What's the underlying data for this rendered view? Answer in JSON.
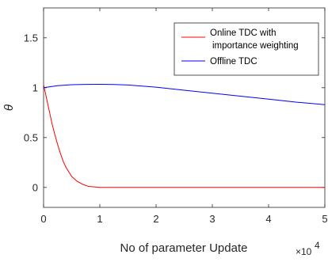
{
  "chart_data": {
    "type": "line",
    "title": "",
    "xlabel": "No of parameter Update",
    "ylabel": "θ",
    "x_multiplier_base": "×10",
    "x_multiplier_exp": "4",
    "xlim": [
      0,
      5
    ],
    "ylim": [
      -0.2,
      1.8
    ],
    "xticks": [
      0,
      1,
      2,
      3,
      4,
      5
    ],
    "yticks": [
      0,
      0.5,
      1,
      1.5
    ],
    "xtick_labels": [
      "0",
      "1",
      "2",
      "3",
      "4",
      "5"
    ],
    "ytick_labels": [
      "0",
      "0.5",
      "1",
      "1.5"
    ],
    "grid": false,
    "legend_position": "top-right",
    "series": [
      {
        "name": "Online TDC with importance weighting",
        "legend_lines": [
          "Online TDC with",
          "importance weighting"
        ],
        "color": "#ff0000",
        "x": [
          0,
          0.05,
          0.1,
          0.15,
          0.2,
          0.25,
          0.3,
          0.35,
          0.4,
          0.5,
          0.6,
          0.7,
          0.8,
          0.9,
          1.0,
          1.5,
          2,
          2.5,
          3,
          3.5,
          4,
          4.5,
          5
        ],
        "y": [
          1.03,
          0.9,
          0.77,
          0.64,
          0.53,
          0.43,
          0.34,
          0.26,
          0.2,
          0.11,
          0.06,
          0.03,
          0.01,
          0.005,
          0.0,
          0.0,
          0.0,
          0.0,
          0.0,
          0.0,
          0.0,
          0.0,
          0.0
        ]
      },
      {
        "name": "Offline TDC",
        "legend_lines": [
          "Offline TDC"
        ],
        "color": "#0000ff",
        "x": [
          0,
          0.25,
          0.5,
          0.75,
          1.0,
          1.25,
          1.5,
          2,
          2.5,
          3,
          3.5,
          4,
          4.5,
          5
        ],
        "y": [
          1.0,
          1.02,
          1.03,
          1.033,
          1.034,
          1.032,
          1.027,
          1.005,
          0.975,
          0.945,
          0.915,
          0.885,
          0.855,
          0.83
        ]
      }
    ]
  }
}
